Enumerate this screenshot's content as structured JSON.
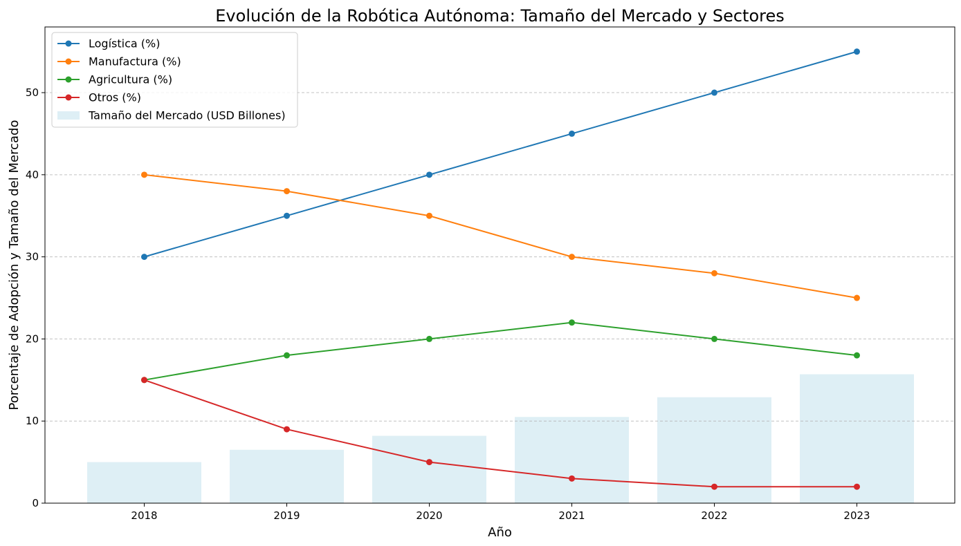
{
  "chart_data": {
    "type": "line",
    "title": "Evolución de la Robótica Autónoma: Tamaño del Mercado y Sectores",
    "xlabel": "Año",
    "ylabel": "Porcentaje de Adopción y Tamaño del Mercado",
    "categories": [
      "2018",
      "2019",
      "2020",
      "2021",
      "2022",
      "2023"
    ],
    "ylim": [
      0,
      58
    ],
    "yticks": [
      0,
      10,
      20,
      30,
      40,
      50
    ],
    "grid": "horizontal dashed",
    "legend_position": "top-left",
    "bars": {
      "name": "Tamaño del Mercado (USD Billones)",
      "color": "#add8e6",
      "values": [
        5.0,
        6.5,
        8.2,
        10.5,
        12.9,
        15.7
      ]
    },
    "series": [
      {
        "name": "Logística (%)",
        "color": "#1f77b4",
        "values": [
          30,
          35,
          40,
          45,
          50,
          55
        ]
      },
      {
        "name": "Manufactura (%)",
        "color": "#ff7f0e",
        "values": [
          40,
          38,
          35,
          30,
          28,
          25
        ]
      },
      {
        "name": "Agricultura (%)",
        "color": "#2ca02c",
        "values": [
          15,
          18,
          20,
          22,
          20,
          18
        ]
      },
      {
        "name": "Otros (%)",
        "color": "#d62728",
        "values": [
          15,
          9,
          5,
          3,
          2,
          2
        ]
      }
    ]
  }
}
